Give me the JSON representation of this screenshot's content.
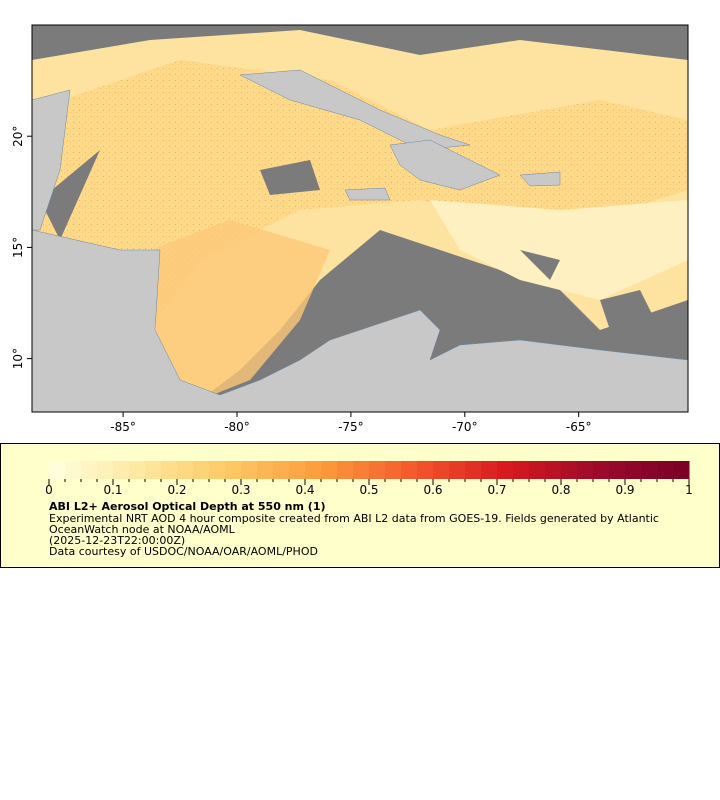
{
  "map": {
    "xlim": [
      -89,
      -60.2
    ],
    "ylim": [
      7.6,
      25
    ],
    "xticks": [
      {
        "value": -85,
        "label": "-85°"
      },
      {
        "value": -80,
        "label": "-80°"
      },
      {
        "value": -75,
        "label": "-75°"
      },
      {
        "value": -70,
        "label": "-70°"
      },
      {
        "value": -65,
        "label": "-65°"
      }
    ],
    "yticks": [
      {
        "value": 10,
        "label": "10°"
      },
      {
        "value": 15,
        "label": "15°"
      },
      {
        "value": 20,
        "label": "20°"
      }
    ]
  },
  "colorbar": {
    "range": [
      0,
      1
    ],
    "ticks": [
      0,
      0.1,
      0.2,
      0.3,
      0.4,
      0.5,
      0.6,
      0.7,
      0.8,
      0.9,
      1
    ],
    "colormap": [
      "#ffffe0",
      "#fee8a0",
      "#fdc864",
      "#fb9a3c",
      "#f3582c",
      "#d7191f",
      "#9c0a2c",
      "#7a0026"
    ],
    "title": "ABI L2+ Aerosol Optical Depth at 550 nm (1)",
    "description": "Experimental NRT AOD 4 hour composite created from ABI L2 data from GOES-19. Fields generated by Atlantic OceanWatch node at NOAA/AOML",
    "time": "(2025-12-23T22:00:00Z)",
    "credit": "Data courtesy of USDOC/NOAA/OAR/AOML/PHOD"
  }
}
